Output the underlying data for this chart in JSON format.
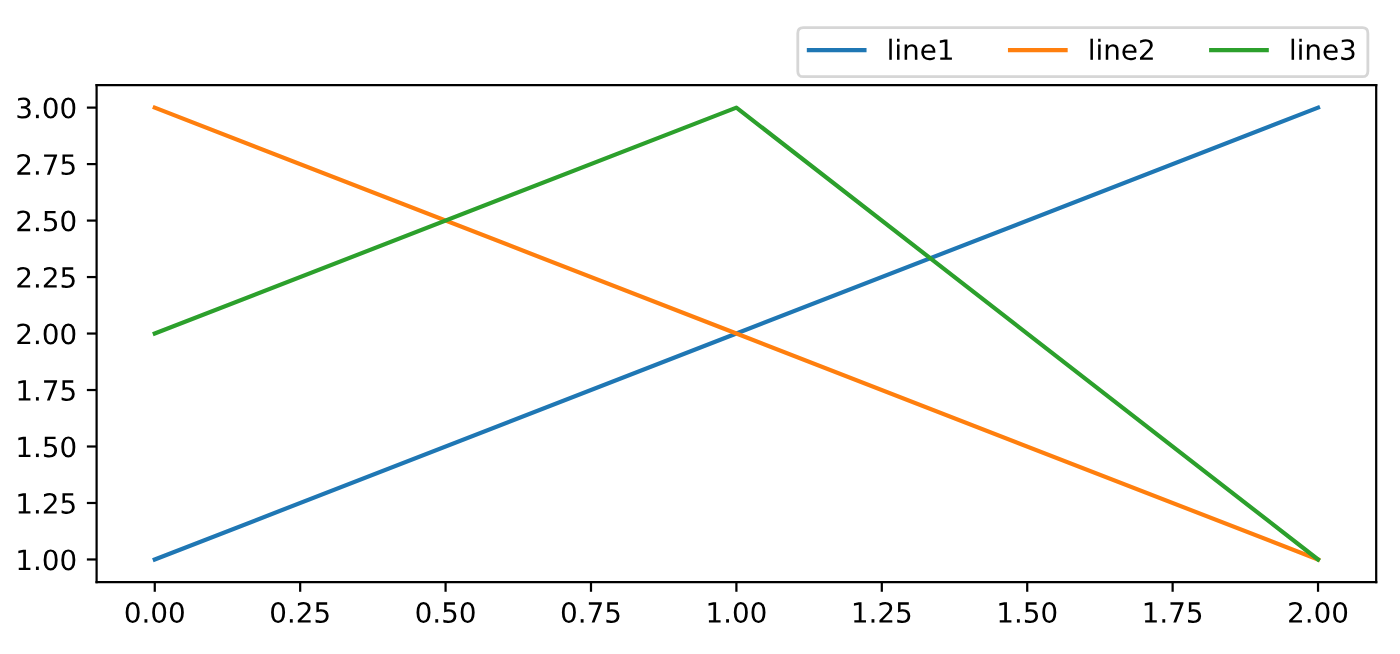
{
  "chart_data": {
    "type": "line",
    "x": [
      0,
      1,
      2
    ],
    "series": [
      {
        "name": "line1",
        "color": "#1f77b4",
        "values": [
          1,
          2,
          3
        ]
      },
      {
        "name": "line2",
        "color": "#ff7f0e",
        "values": [
          3,
          2,
          1
        ]
      },
      {
        "name": "line3",
        "color": "#2ca02c",
        "values": [
          2,
          3,
          1
        ]
      }
    ],
    "xlim": [
      -0.1,
      2.1
    ],
    "ylim": [
      0.9,
      3.1
    ],
    "xticks": [
      {
        "value": 0,
        "label": "0.00"
      },
      {
        "value": 0.25,
        "label": "0.25"
      },
      {
        "value": 0.5,
        "label": "0.50"
      },
      {
        "value": 0.75,
        "label": "0.75"
      },
      {
        "value": 1,
        "label": "1.00"
      },
      {
        "value": 1.25,
        "label": "1.25"
      },
      {
        "value": 1.5,
        "label": "1.50"
      },
      {
        "value": 1.75,
        "label": "1.75"
      },
      {
        "value": 2,
        "label": "2.00"
      }
    ],
    "yticks": [
      {
        "value": 1,
        "label": "1.00"
      },
      {
        "value": 1.25,
        "label": "1.25"
      },
      {
        "value": 1.5,
        "label": "1.50"
      },
      {
        "value": 1.75,
        "label": "1.75"
      },
      {
        "value": 2,
        "label": "2.00"
      },
      {
        "value": 2.25,
        "label": "2.25"
      },
      {
        "value": 2.5,
        "label": "2.50"
      },
      {
        "value": 2.75,
        "label": "2.75"
      },
      {
        "value": 3,
        "label": "3.00"
      }
    ],
    "legend": "top right",
    "grid": false
  }
}
